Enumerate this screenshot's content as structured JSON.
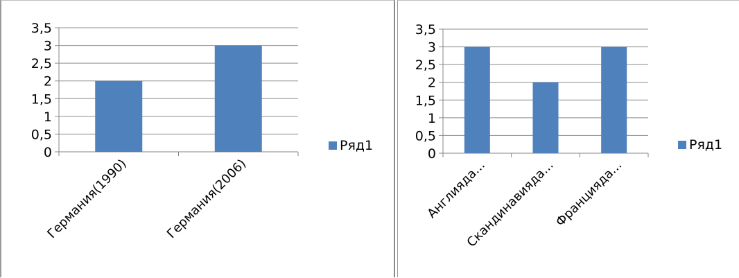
{
  "chart_data": [
    {
      "type": "bar",
      "categories": [
        "Германия(1990)",
        "Германия(2006)"
      ],
      "series": [
        {
          "name": "Ряд1",
          "values": [
            2,
            3
          ],
          "color": "#4f81bd"
        }
      ],
      "ylim": [
        0,
        3.5
      ],
      "yticks": [
        "0",
        "0,5",
        "1",
        "1,5",
        "2",
        "2,5",
        "3",
        "3,5"
      ],
      "grid": true,
      "legend": "right"
    },
    {
      "type": "bar",
      "categories": [
        "Англияда...",
        "Скандинавияда...",
        "Францияда..."
      ],
      "series": [
        {
          "name": "Ряд1",
          "values": [
            3,
            2,
            3
          ],
          "color": "#4f81bd"
        }
      ],
      "ylim": [
        0,
        3.5
      ],
      "yticks": [
        "0",
        "0,5",
        "1",
        "1,5",
        "2",
        "2,5",
        "3",
        "3,5"
      ],
      "grid": true,
      "legend": "right"
    }
  ]
}
